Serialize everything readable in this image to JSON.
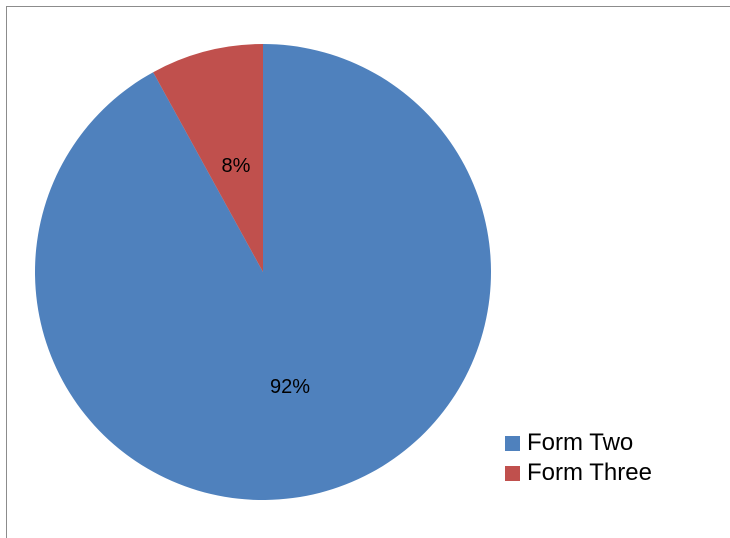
{
  "chart_data": {
    "type": "pie",
    "slices": [
      {
        "name": "Form Two",
        "value": 92,
        "label": "92%",
        "color": "#4f81bd"
      },
      {
        "name": "Form Three",
        "value": 8,
        "label": "8%",
        "color": "#c0504d"
      }
    ],
    "legend_position": "bottom-right"
  }
}
